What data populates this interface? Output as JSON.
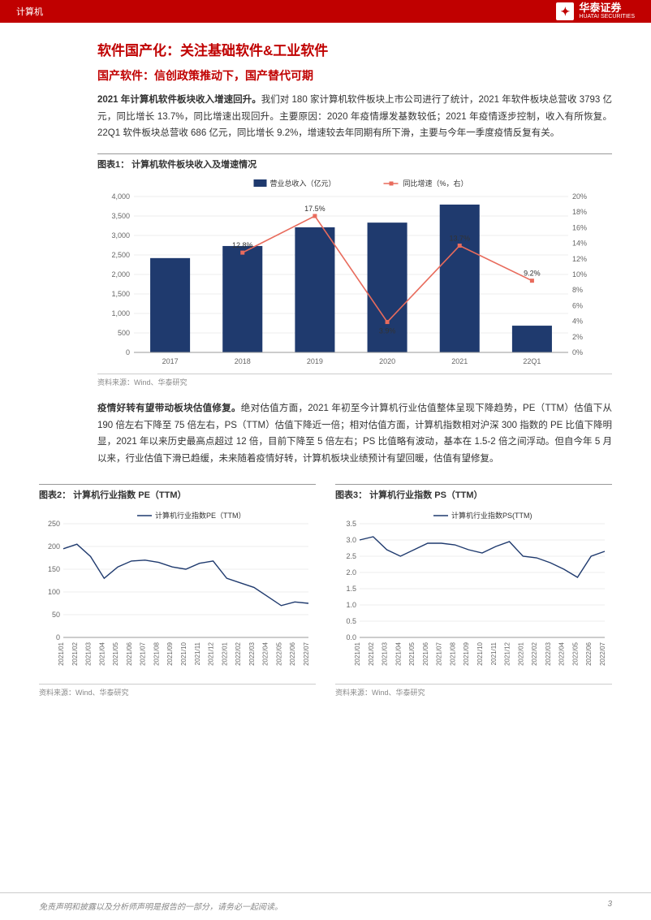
{
  "header": {
    "category": "计算机",
    "company": "华泰证券",
    "company_en": "HUATAI SECURITIES"
  },
  "title_h1": "软件国产化：关注基础软件&工业软件",
  "title_h2": "国产软件：信创政策推动下，国产替代可期",
  "para1_bold": "2021 年计算机软件板块收入增速回升。",
  "para1_rest": "我们对 180 家计算机软件板块上市公司进行了统计，2021 年软件板块总营收 3793 亿元，同比增长 13.7%，同比增速出现回升。主要原因：2020 年疫情爆发基数较低；2021 年疫情逐步控制，收入有所恢复。22Q1 软件板块总营收 686 亿元，同比增长 9.2%，增速较去年同期有所下滑，主要与今年一季度疫情反复有关。",
  "chart1": {
    "title": "图表1：   计算机软件板块收入及增速情况",
    "type": "bar+line",
    "legend_bar": "营业总收入（亿元）",
    "legend_line": "同比增速（%，右）",
    "categories": [
      "2017",
      "2018",
      "2019",
      "2020",
      "2021",
      "22Q1"
    ],
    "bar_values": [
      2420,
      2730,
      3210,
      3330,
      3793,
      686
    ],
    "line_values": [
      null,
      12.8,
      17.5,
      3.9,
      13.7,
      9.2
    ],
    "line_labels": [
      "",
      "12.8%",
      "17.5%",
      "3.9%",
      "13.7%",
      "9.2%"
    ],
    "y1_max": 4000,
    "y1_step": 500,
    "y2_max": 20,
    "y2_step": 2,
    "bar_color": "#1f3a6e",
    "line_color": "#e86b5c",
    "grid_color": "#d9d9d9",
    "bg": "#ffffff",
    "source": "资料来源：Wind、华泰研究"
  },
  "para2_bold": "疫情好转有望带动板块估值修复。",
  "para2_rest": "绝对估值方面，2021 年初至今计算机行业估值整体呈现下降趋势，PE（TTM）估值下从 190 倍左右下降至 75 倍左右，PS（TTM）估值下降近一倍；相对估值方面，计算机指数相对沪深 300 指数的 PE 比值下降明显，2021 年以来历史最高点超过 12 倍，目前下降至 5 倍左右；PS 比值略有波动，基本在 1.5-2 倍之间浮动。但自今年 5 月以来，行业估值下滑已趋缓，未来随着疫情好转，计算机板块业绩预计有望回暖，估值有望修复。",
  "chart2": {
    "title": "图表2：   计算机行业指数 PE（TTM）",
    "legend": "计算机行业指数PE（TTM）",
    "type": "line",
    "y_max": 250,
    "y_step": 50,
    "y_min": 0,
    "line_color": "#1f3a6e",
    "grid_color": "#d9d9d9",
    "x_labels": [
      "2021/01",
      "2021/02",
      "2021/03",
      "2021/04",
      "2021/05",
      "2021/06",
      "2021/07",
      "2021/08",
      "2021/09",
      "2021/10",
      "2021/11",
      "2021/12",
      "2022/01",
      "2022/02",
      "2022/03",
      "2022/04",
      "2022/05",
      "2022/06",
      "2022/07"
    ],
    "values": [
      195,
      205,
      178,
      130,
      155,
      168,
      170,
      165,
      155,
      150,
      163,
      168,
      130,
      120,
      110,
      90,
      70,
      78,
      75
    ],
    "source": "资料来源：Wind、华泰研究"
  },
  "chart3": {
    "title": "图表3：   计算机行业指数 PS（TTM）",
    "legend": "计算机行业指数PS(TTM)",
    "type": "line",
    "y_max": 3.5,
    "y_step": 0.5,
    "y_min": 0,
    "line_color": "#1f3a6e",
    "grid_color": "#d9d9d9",
    "x_labels": [
      "2021/01",
      "2021/02",
      "2021/03",
      "2021/04",
      "2021/05",
      "2021/06",
      "2021/07",
      "2021/08",
      "2021/09",
      "2021/10",
      "2021/11",
      "2021/12",
      "2022/01",
      "2022/02",
      "2022/03",
      "2022/04",
      "2022/05",
      "2022/06",
      "2022/07"
    ],
    "values": [
      3.0,
      3.1,
      2.7,
      2.5,
      2.7,
      2.9,
      2.9,
      2.85,
      2.7,
      2.6,
      2.8,
      2.95,
      2.5,
      2.45,
      2.3,
      2.1,
      1.85,
      2.5,
      2.65
    ],
    "source": "资料来源：Wind、华泰研究"
  },
  "footer": {
    "disclaimer": "免责声明和披露以及分析师声明是报告的一部分，请务必一起阅读。",
    "page": "3"
  }
}
